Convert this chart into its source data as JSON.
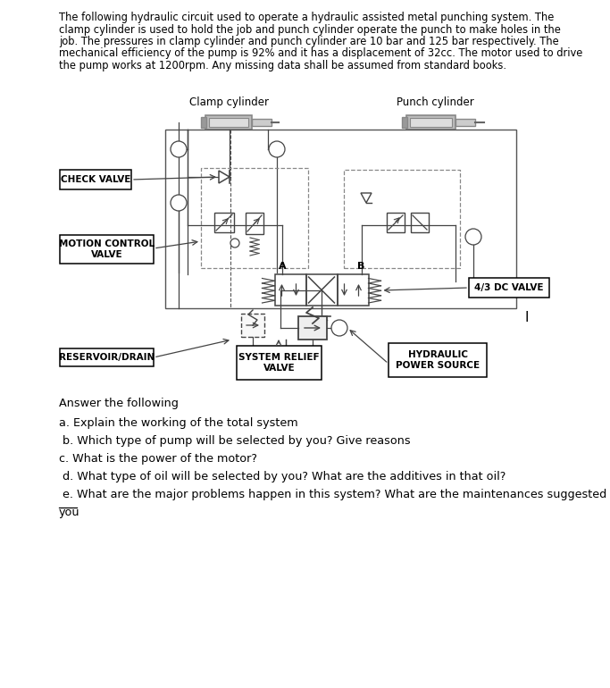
{
  "bg_color": "#ffffff",
  "page_width": 6.83,
  "page_height": 7.7,
  "dpi": 100,
  "intro_text_lines": [
    "The following hydraulic circuit used to operate a hydraulic assisted metal punching system. The",
    "clamp cylinder is used to hold the job and punch cylinder operate the punch to make holes in the",
    "job. The pressures in clamp cylinder and punch cylinder are 10 bar and 125 bar respectively. The",
    "mechanical efficiency of the pump is 92% and it has a displacement of 32cc. The motor used to drive",
    "the pump works at 1200rpm. Any missing data shall be assumed from standard books."
  ],
  "answer_heading": "Answer the following",
  "questions": [
    "a. Explain the working of the total system",
    " b. Which type of pump will be selected by you? Give reasons",
    "c. What is the power of the motor?",
    " d. What type of oil will be selected by you? What are the additives in that oil?",
    " e. What are the major problems happen in this system? What are the maintenances suggested by",
    "you"
  ],
  "labels": {
    "clamp_cylinder": "Clamp cylinder",
    "punch_cylinder": "Punch cylinder",
    "check_valve": "CHECK VALVE",
    "motion_control_valve_1": "MOTION CONTROL",
    "motion_control_valve_2": "VALVE",
    "reservoir_drain": "RESERVOIR/DRAIN",
    "system_relief_valve_1": "SYSTEM RELIEF",
    "system_relief_valve_2": "VALVE",
    "hydraulic_power_source_1": "HYDRAULIC",
    "hydraulic_power_source_2": "POWER SOURCE",
    "dc_valve": "4/3 DC VALVE",
    "port_a": "A",
    "port_b": "B"
  },
  "color_line": "#444444",
  "color_cyl": "#aaaaaa",
  "color_cyl_inner": "#cccccc",
  "color_gauge_slash": "#444444"
}
